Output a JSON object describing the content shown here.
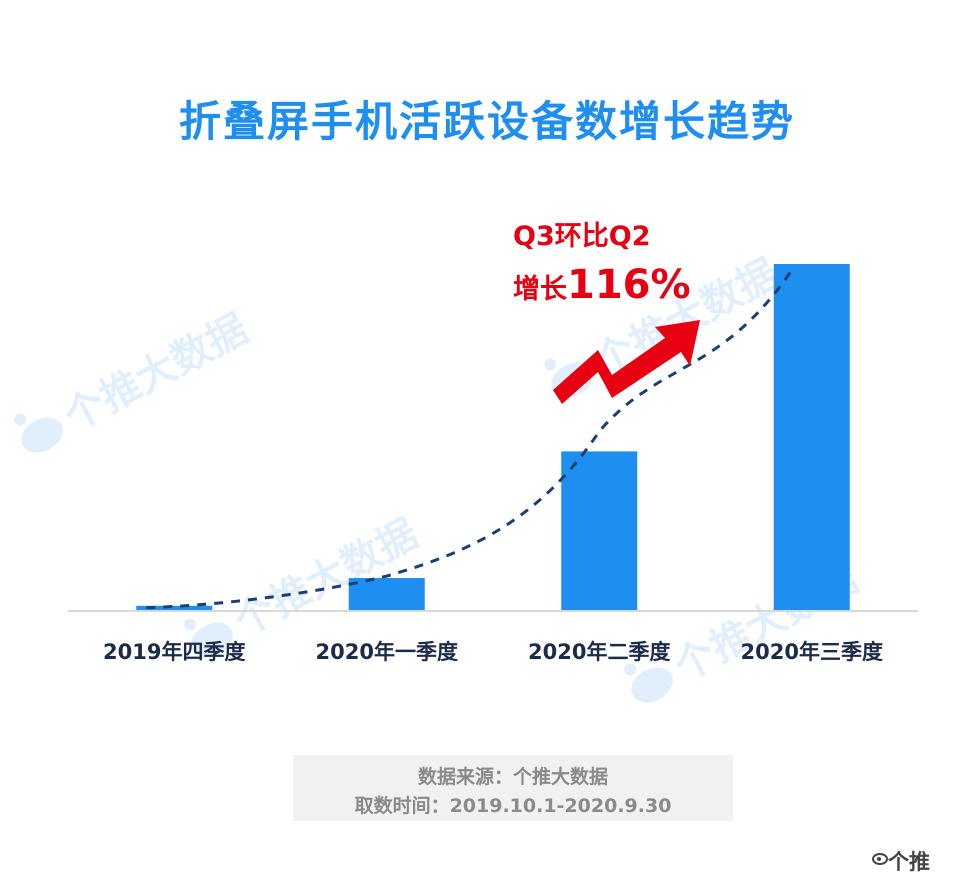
{
  "chart_data": {
    "type": "bar",
    "title": "折叠屏手机活跃设备数增长趋势",
    "categories": [
      "2019年四季度",
      "2020年一季度",
      "2020年二季度",
      "2020年三季度"
    ],
    "values": [
      1.5,
      9.5,
      46,
      100
    ],
    "ylim": [
      0,
      100
    ],
    "grid": false,
    "trendline": "dashed",
    "bar_color": "#1f8ef1",
    "trend_color": "#1b3f73",
    "annotation": {
      "line1": "Q3环比Q2",
      "line2_prefix": "增长",
      "line2_value": "116%",
      "color": "#e60012"
    }
  },
  "watermark": {
    "text": "个推大数据"
  },
  "source": {
    "line1": "数据来源：个推大数据",
    "line2": "取数时间：2019.10.1-2020.9.30"
  },
  "corner_label": "个推"
}
